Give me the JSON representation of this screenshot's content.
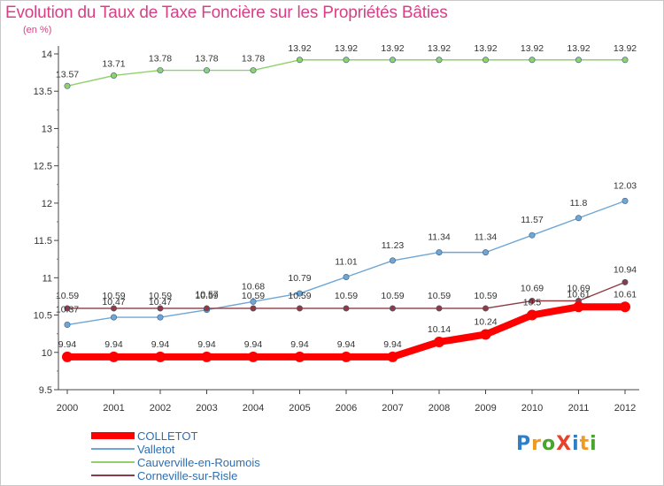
{
  "title": "Evolution du Taux de Taxe Foncière sur les Propriétés Bâties",
  "unit": "(en %)",
  "logo": {
    "letters": [
      {
        "ch": "P",
        "color": "#2f7fc8"
      },
      {
        "ch": "r",
        "color": "#f29a1f"
      },
      {
        "ch": "o",
        "color": "#4aa52e"
      },
      {
        "ch": "X",
        "color": "#e8412c"
      },
      {
        "ch": "i",
        "color": "#2f7fc8"
      },
      {
        "ch": "t",
        "color": "#f29a1f"
      },
      {
        "ch": "i",
        "color": "#4aa52e"
      }
    ]
  },
  "chart_data": {
    "type": "line",
    "title": "Evolution du Taux de Taxe Foncière sur les Propriétés Bâties",
    "ylabel": "(en %)",
    "x": [
      "2000",
      "2001",
      "2002",
      "2003",
      "2004",
      "2005",
      "2006",
      "2007",
      "2008",
      "2009",
      "2010",
      "2011",
      "2012"
    ],
    "ylim": [
      9.5,
      14
    ],
    "yticks": [
      "9.5",
      "10",
      "10.5",
      "11",
      "11.5",
      "12",
      "12.5",
      "13",
      "13.5",
      "14"
    ],
    "grid": false,
    "legend": "bottom-left",
    "series": [
      {
        "name": "Cauverville-en-Roumois",
        "color": "#8fd16a",
        "values": [
          13.57,
          13.71,
          13.78,
          13.78,
          13.78,
          13.92,
          13.92,
          13.92,
          13.92,
          13.92,
          13.92,
          13.92,
          13.92
        ],
        "labels": [
          "13.57",
          "13.71",
          "13.78",
          "13.78",
          "13.78",
          "13.92",
          "13.92",
          "13.92",
          "13.92",
          "13.92",
          "13.92",
          "13.92",
          "13.92"
        ]
      },
      {
        "name": "Valletot",
        "color": "#6ea6d6",
        "values": [
          10.37,
          10.47,
          10.47,
          10.57,
          10.68,
          10.79,
          11.01,
          11.23,
          11.34,
          11.34,
          11.57,
          11.8,
          12.03
        ],
        "labels": [
          "10.37",
          "10.47",
          "10.47",
          "10.57",
          "10.68",
          "10.79",
          "11.01",
          "11.23",
          "11.34",
          "11.34",
          "11.57",
          "11.8",
          "12.03"
        ]
      },
      {
        "name": "Corneville-sur-Risle",
        "color": "#8c3b43",
        "values": [
          10.59,
          10.59,
          10.59,
          10.59,
          10.59,
          10.59,
          10.59,
          10.59,
          10.59,
          10.59,
          10.69,
          10.69,
          10.94
        ],
        "labels": [
          "10.59",
          "10.59",
          "10.59",
          "10.59",
          "10.59",
          "10.59",
          "10.59",
          "10.59",
          "10.59",
          "10.59",
          "10.69",
          "10.69",
          "10.94"
        ]
      },
      {
        "name": "COLLETOT",
        "color": "#ff0000",
        "values": [
          9.94,
          9.94,
          9.94,
          9.94,
          9.94,
          9.94,
          9.94,
          9.94,
          10.14,
          10.24,
          10.5,
          10.61,
          10.61
        ],
        "labels": [
          "9.94",
          "9.94",
          "9.94",
          "9.94",
          "9.94",
          "9.94",
          "9.94",
          "9.94",
          "10.14",
          "10.24",
          "10.5",
          "10.61",
          "10.61"
        ]
      }
    ],
    "legend_entries": [
      {
        "name": "COLLETOT",
        "color": "#ff0000"
      },
      {
        "name": "Valletot",
        "color": "#6ea6d6"
      },
      {
        "name": "Cauverville-en-Roumois",
        "color": "#8fd16a"
      },
      {
        "name": "Corneville-sur-Risle",
        "color": "#8c3b43"
      }
    ]
  }
}
